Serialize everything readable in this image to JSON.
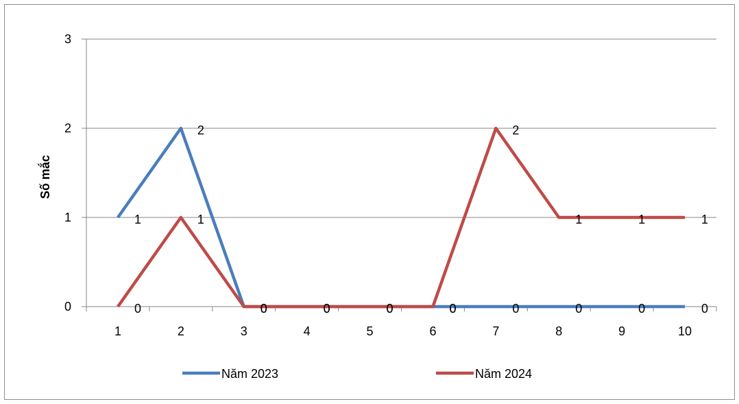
{
  "chart_data": {
    "type": "line",
    "title": "",
    "xlabel": "",
    "ylabel": "Số mắc",
    "categories": [
      "1",
      "2",
      "3",
      "4",
      "5",
      "6",
      "7",
      "8",
      "9",
      "10"
    ],
    "ylim": [
      0,
      3
    ],
    "yticks": [
      "0",
      "1",
      "2",
      "3"
    ],
    "grid": true,
    "legend_position": "bottom",
    "series": [
      {
        "name": "Năm 2023",
        "color": "#4a7ebb",
        "values": [
          1,
          2,
          0,
          0,
          0,
          0,
          0,
          0,
          0,
          0
        ],
        "data_labels": [
          "1",
          "2",
          "0",
          "0",
          "0",
          "0",
          "0",
          "0",
          "0",
          "0"
        ]
      },
      {
        "name": "Năm 2024",
        "color": "#be4b48",
        "values": [
          0,
          1,
          0,
          0,
          0,
          0,
          2,
          1,
          1,
          1
        ],
        "data_labels": [
          "0",
          "1",
          "0",
          "0",
          "0",
          "0",
          "2",
          "1",
          "1",
          "1"
        ]
      }
    ]
  }
}
